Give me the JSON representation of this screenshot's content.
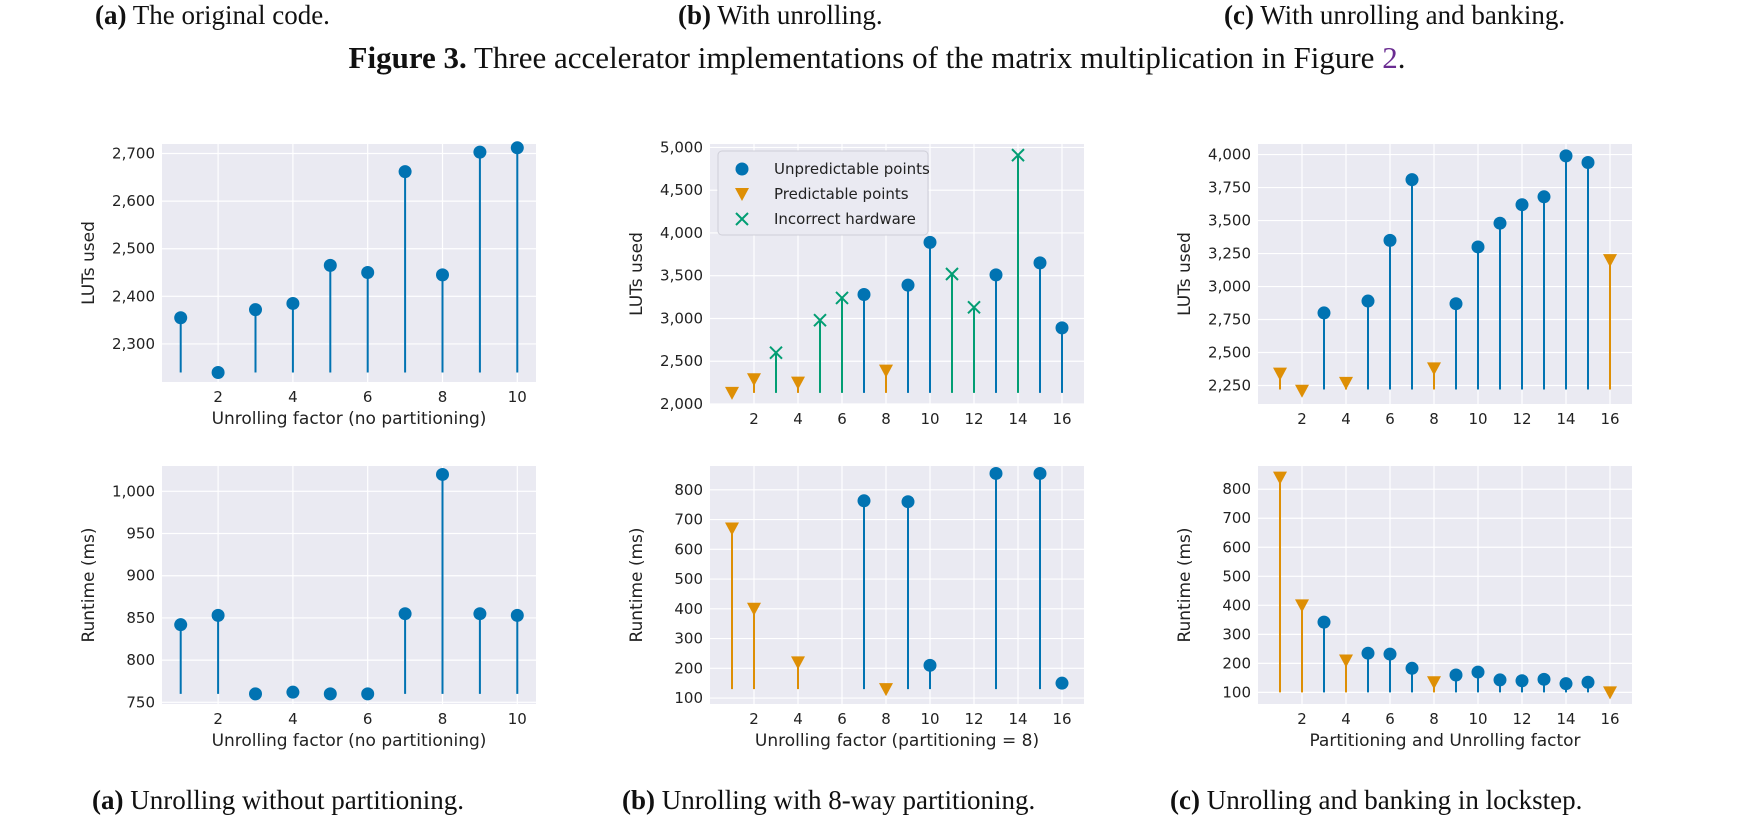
{
  "top_captions": [
    {
      "tag": "(a)",
      "text": "The original code."
    },
    {
      "tag": "(b)",
      "text": "With unrolling."
    },
    {
      "tag": "(c)",
      "text": "With unrolling and banking."
    }
  ],
  "figure_title": {
    "label": "Figure 3.",
    "text": "Three accelerator implementations of the matrix multiplication in Figure",
    "ref": "2",
    "end": "."
  },
  "bottom_captions": [
    {
      "tag": "(a)",
      "text": "Unrolling without partitioning."
    },
    {
      "tag": "(b)",
      "text": "Unrolling with 8-way partitioning."
    },
    {
      "tag": "(c)",
      "text": "Unrolling and banking in lockstep."
    }
  ],
  "colors": {
    "unpredictable": "#0173b2",
    "predictable": "#de8f05",
    "incorrect": "#029e73",
    "background": "#eaeaf2",
    "grid": "#ffffff"
  },
  "chart_data": [
    {
      "type": "scatter",
      "style": "stem",
      "xlabel": "Unrolling factor (no partitioning)",
      "ylabel": "LUTs used",
      "xlim": [
        0.5,
        10.5
      ],
      "ylim": [
        2220,
        2720
      ],
      "stem_base": 2240,
      "xticks": [
        2,
        4,
        6,
        8,
        10
      ],
      "yticks": [
        2300,
        2400,
        2500,
        2600,
        2700
      ],
      "yticklabels": [
        "2,300",
        "2,400",
        "2,500",
        "2,600",
        "2,700"
      ],
      "series": [
        {
          "kind": "unpredictable",
          "x": [
            1,
            2,
            3,
            4,
            5,
            6,
            7,
            8,
            9,
            10
          ],
          "y": [
            2355,
            2240,
            2372,
            2385,
            2465,
            2450,
            2662,
            2445,
            2703,
            2712
          ]
        }
      ]
    },
    {
      "type": "scatter",
      "style": "stem",
      "xlabel": "",
      "ylabel": "LUTs used",
      "xlim": [
        0,
        17
      ],
      "ylim": [
        2000,
        5040
      ],
      "stem_base": 2130,
      "xticks": [
        2,
        4,
        6,
        8,
        10,
        12,
        14,
        16
      ],
      "yticks": [
        2000,
        2500,
        3000,
        3500,
        4000,
        4500,
        5000
      ],
      "yticklabels": [
        "2,000",
        "2,500",
        "3,000",
        "3,500",
        "4,000",
        "4,500",
        "5,000"
      ],
      "legend": {
        "position": "upper-left",
        "entries": [
          {
            "kind": "unpredictable",
            "label": "Unpredictable points"
          },
          {
            "kind": "predictable",
            "label": "Predictable points"
          },
          {
            "kind": "incorrect",
            "label": "Incorrect hardware"
          }
        ]
      },
      "series": [
        {
          "kind": "unpredictable",
          "x": [
            7,
            9,
            10,
            13,
            15,
            16
          ],
          "y": [
            3280,
            3390,
            3890,
            3510,
            3650,
            2890
          ]
        },
        {
          "kind": "predictable",
          "x": [
            1,
            2,
            4,
            8
          ],
          "y": [
            2130,
            2290,
            2250,
            2390
          ]
        },
        {
          "kind": "incorrect",
          "x": [
            3,
            5,
            6,
            11,
            12,
            14
          ],
          "y": [
            2600,
            2980,
            3240,
            3520,
            3130,
            4910
          ]
        }
      ]
    },
    {
      "type": "scatter",
      "style": "stem",
      "xlabel": "",
      "ylabel": "LUTs used",
      "xlim": [
        0,
        17
      ],
      "ylim": [
        2110,
        4080
      ],
      "stem_base": 2220,
      "xticks": [
        2,
        4,
        6,
        8,
        10,
        12,
        14,
        16
      ],
      "yticks": [
        2250,
        2500,
        2750,
        3000,
        3250,
        3500,
        3750,
        4000
      ],
      "yticklabels": [
        "2,250",
        "2,500",
        "2,750",
        "3,000",
        "3,250",
        "3,500",
        "3,750",
        "4,000"
      ],
      "series": [
        {
          "kind": "unpredictable",
          "x": [
            3,
            5,
            6,
            7,
            9,
            10,
            11,
            12,
            13,
            14,
            15
          ],
          "y": [
            2800,
            2890,
            3350,
            3810,
            2870,
            3300,
            3480,
            3620,
            3680,
            3990,
            3940
          ]
        },
        {
          "kind": "predictable",
          "x": [
            1,
            2,
            4,
            8,
            16
          ],
          "y": [
            2340,
            2210,
            2270,
            2380,
            3200
          ]
        }
      ]
    },
    {
      "type": "scatter",
      "style": "stem",
      "xlabel": "Unrolling factor (no partitioning)",
      "ylabel": "Runtime (ms)",
      "xlim": [
        0.5,
        10.5
      ],
      "ylim": [
        748,
        1030
      ],
      "stem_base": 760,
      "xticks": [
        2,
        4,
        6,
        8,
        10
      ],
      "yticks": [
        750,
        800,
        850,
        900,
        950,
        1000
      ],
      "yticklabels": [
        "750",
        "800",
        "850",
        "900",
        "950",
        "1,000"
      ],
      "series": [
        {
          "kind": "unpredictable",
          "x": [
            1,
            2,
            3,
            4,
            5,
            6,
            7,
            8,
            9,
            10
          ],
          "y": [
            842,
            853,
            760,
            762,
            760,
            760,
            855,
            1020,
            855,
            853
          ]
        }
      ]
    },
    {
      "type": "scatter",
      "style": "stem",
      "xlabel": "Unrolling factor (partitioning = 8)",
      "ylabel": "Runtime (ms)",
      "xlim": [
        0,
        17
      ],
      "ylim": [
        80,
        880
      ],
      "stem_base": 130,
      "xticks": [
        2,
        4,
        6,
        8,
        10,
        12,
        14,
        16
      ],
      "yticks": [
        100,
        200,
        300,
        400,
        500,
        600,
        700,
        800
      ],
      "yticklabels": [
        "100",
        "200",
        "300",
        "400",
        "500",
        "600",
        "700",
        "800"
      ],
      "series": [
        {
          "kind": "unpredictable",
          "x": [
            7,
            9,
            10,
            13,
            15,
            16
          ],
          "y": [
            763,
            760,
            210,
            855,
            855,
            150
          ]
        },
        {
          "kind": "predictable",
          "x": [
            1,
            2,
            4,
            8
          ],
          "y": [
            670,
            400,
            220,
            130
          ]
        }
      ]
    },
    {
      "type": "scatter",
      "style": "stem",
      "xlabel": "Partitioning and Unrolling factor",
      "ylabel": "Runtime (ms)",
      "xlim": [
        0,
        17
      ],
      "ylim": [
        60,
        880
      ],
      "stem_base": 100,
      "xticks": [
        2,
        4,
        6,
        8,
        10,
        12,
        14,
        16
      ],
      "yticks": [
        100,
        200,
        300,
        400,
        500,
        600,
        700,
        800
      ],
      "yticklabels": [
        "100",
        "200",
        "300",
        "400",
        "500",
        "600",
        "700",
        "800"
      ],
      "series": [
        {
          "kind": "unpredictable",
          "x": [
            3,
            5,
            6,
            7,
            9,
            10,
            11,
            12,
            13,
            14,
            15
          ],
          "y": [
            342,
            235,
            232,
            183,
            160,
            170,
            143,
            140,
            145,
            130,
            135
          ]
        },
        {
          "kind": "predictable",
          "x": [
            1,
            2,
            4,
            8,
            16
          ],
          "y": [
            840,
            400,
            210,
            135,
            100
          ]
        }
      ]
    }
  ]
}
